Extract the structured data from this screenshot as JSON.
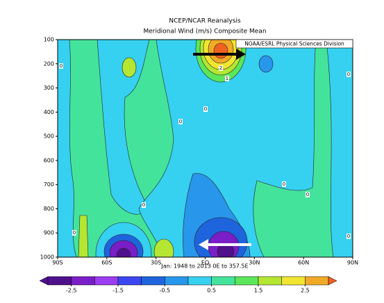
{
  "chart_data": {
    "type": "contour",
    "title": "NCEP/NCAR Reanalysis",
    "subtitle": "Meridional Wind (m/s) Composite Mean",
    "caption": "Jan: 1948 to 2013 0E to 357.5E",
    "credit": "NOAA/ESRL Physical Sciences Division",
    "ylim": [
      1000,
      100
    ],
    "yticks": [
      100,
      200,
      300,
      400,
      500,
      600,
      700,
      800,
      900,
      1000
    ],
    "xlim": [
      -90,
      90
    ],
    "xticks": [
      {
        "value": -90,
        "label": "90S"
      },
      {
        "value": -60,
        "label": "60S"
      },
      {
        "value": -30,
        "label": "30S"
      },
      {
        "value": 0,
        "label": "EQ"
      },
      {
        "value": 30,
        "label": "30N"
      },
      {
        "value": 60,
        "label": "60N"
      },
      {
        "value": 90,
        "label": "90N"
      }
    ],
    "contour_labels": [
      0,
      2,
      1,
      0,
      0,
      0,
      0,
      0,
      0,
      0,
      0
    ],
    "colorbar": {
      "clim": [
        -3,
        3
      ],
      "ticks": [
        -2.5,
        -1.5,
        -0.5,
        0.5,
        1.5,
        2.5
      ],
      "colors": [
        "#50108c",
        "#50108c",
        "#7a1ec8",
        "#9b3cf0",
        "#3c46f0",
        "#1e64dc",
        "#2896ea",
        "#36d0f0",
        "#44e39c",
        "#5ce65a",
        "#b4e632",
        "#f0e632",
        "#f0aa28",
        "#f0601e"
      ]
    }
  }
}
